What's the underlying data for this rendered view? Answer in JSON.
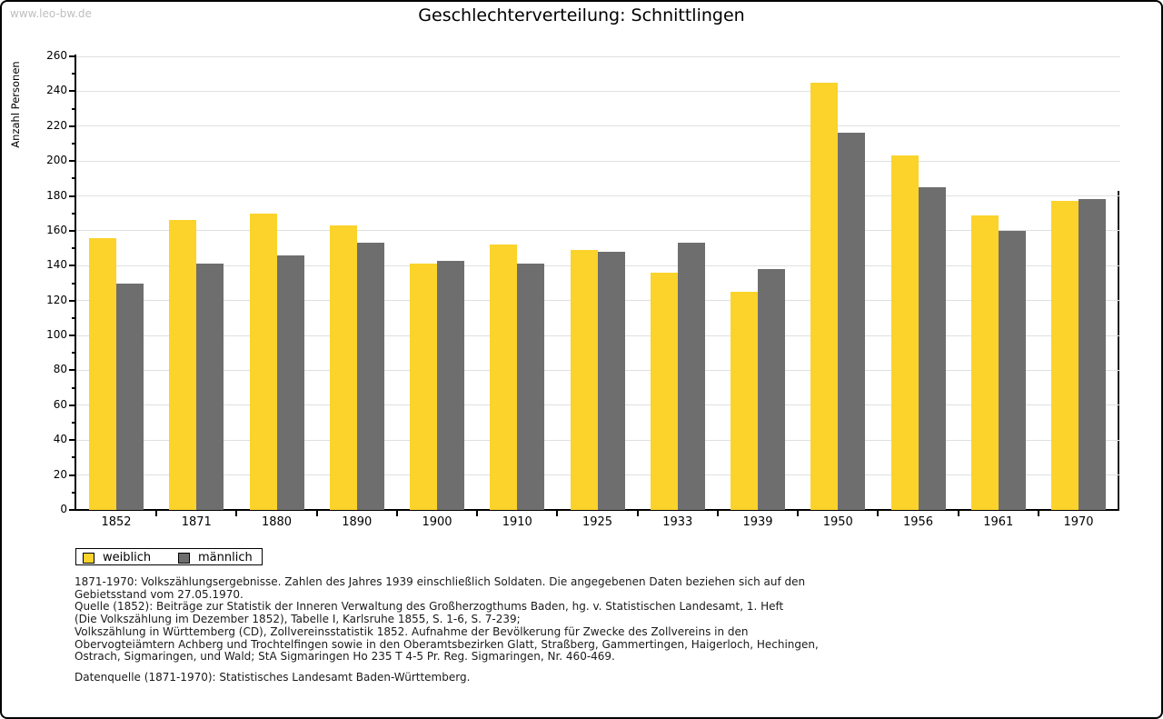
{
  "watermark": "www.leo-bw.de",
  "chart_data": {
    "type": "bar",
    "title": "Geschlechterverteilung: Schnittlingen",
    "ylabel": "Anzahl Personen",
    "xlabel": "",
    "categories": [
      "1852",
      "1871",
      "1880",
      "1890",
      "1900",
      "1910",
      "1925",
      "1933",
      "1939",
      "1950",
      "1956",
      "1961",
      "1970"
    ],
    "series": [
      {
        "name": "weiblich",
        "color": "#FBD32B",
        "values": [
          156,
          166,
          170,
          163,
          141,
          152,
          149,
          136,
          125,
          245,
          203,
          169,
          177
        ]
      },
      {
        "name": "männlich",
        "color": "#6E6E6E",
        "values": [
          130,
          141,
          146,
          153,
          143,
          141,
          148,
          153,
          138,
          216,
          185,
          160,
          178
        ]
      }
    ],
    "ylim": [
      0,
      260
    ],
    "ytick_major": 20,
    "ytick_minor": 10,
    "grid": true,
    "gridline_color": "#e0e0e0",
    "legend_position": "below-plot-left"
  },
  "footer": {
    "lines": [
      "1871-1970: Volkszählungsergebnisse. Zahlen des Jahres 1939 einschließlich Soldaten. Die angegebenen Daten beziehen sich auf den",
      "Gebietsstand vom 27.05.1970.",
      "Quelle (1852): Beiträge zur Statistik der Inneren Verwaltung des Großherzogthums Baden, hg. v. Statistischen Landesamt, 1. Heft",
      "(Die Volkszählung im Dezember 1852), Tabelle I, Karlsruhe 1855, S. 1-6, S. 7-239;",
      "Volkszählung in Württemberg (CD), Zollvereinsstatistik 1852. Aufnahme der Bevölkerung für Zwecke des Zollvereins in den",
      "Obervogteiämtern Achberg und Trochtelfingen sowie in den Oberamtsbezirken Glatt, Straßberg, Gammertingen, Haigerloch, Hechingen,",
      "Ostrach, Sigmaringen, und Wald; StA Sigmaringen Ho 235 T 4-5 Pr. Reg. Sigmaringen, Nr. 460-469."
    ],
    "source": "Datenquelle (1871-1970): Statistisches Landesamt Baden-Württemberg."
  }
}
